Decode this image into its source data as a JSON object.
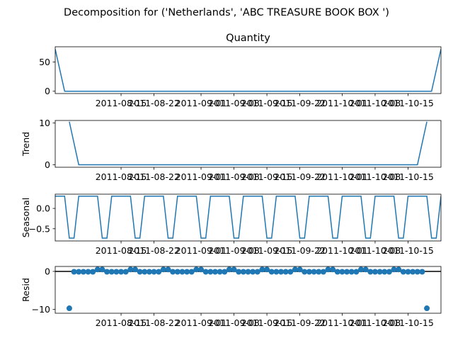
{
  "figure": {
    "suptitle": "Decomposition for ('Netherlands', 'ABC TREASURE BOOK BOX ')"
  },
  "x_ticks": [
    "2011-08-15",
    "2011-08-22",
    "2011-09-01",
    "2011-09-08",
    "2011-09-15",
    "2011-09-22",
    "2011-10-01",
    "2011-10-08",
    "2011-10-15"
  ],
  "colors": {
    "line": "#1f77b4",
    "zero_line": "#000000"
  },
  "chart_data": [
    {
      "type": "line",
      "title": "Quantity",
      "ylabel": "",
      "ylim": [
        -4,
        76
      ],
      "yticks": [
        "0",
        "50"
      ],
      "ytick_values": [
        0,
        50
      ],
      "x": [
        "2011-08-01",
        "2011-08-03",
        "2011-10-20",
        "2011-10-22"
      ],
      "values": [
        72,
        0,
        0,
        72
      ]
    },
    {
      "type": "line",
      "title": "",
      "ylabel": "Trend",
      "ylim": [
        -0.6,
        10.6
      ],
      "yticks": [
        "0",
        "10"
      ],
      "ytick_values": [
        0,
        10
      ],
      "x": [
        "2011-08-04",
        "2011-08-06",
        "2011-10-17",
        "2011-10-19"
      ],
      "values": [
        10.3,
        0,
        0,
        10.3
      ]
    },
    {
      "type": "line",
      "title": "",
      "ylabel": "Seasonal",
      "ylim": [
        -0.8,
        0.35
      ],
      "yticks": [
        "−0.5",
        "0.0"
      ],
      "ytick_values": [
        -0.5,
        0
      ],
      "period_days": 7,
      "start": "2011-08-01",
      "end": "2011-10-22",
      "pattern": [
        0.3,
        0.3,
        0.3,
        -0.73,
        -0.73,
        0.3,
        0.3
      ]
    },
    {
      "type": "scatter",
      "title": "",
      "ylabel": "Resid",
      "ylim": [
        -11,
        1.3
      ],
      "yticks": [
        "−10",
        "0"
      ],
      "ytick_values": [
        -10,
        0
      ],
      "hline": 0,
      "start": "2011-08-04",
      "end": "2011-10-19",
      "outliers": [
        {
          "x": "2011-08-04",
          "y": -9.7
        },
        {
          "x": "2011-10-19",
          "y": -9.7
        }
      ],
      "period_days": 7,
      "pattern": [
        0.5,
        -0.1,
        -0.1,
        -0.1,
        -0.1,
        -0.1,
        0.5
      ]
    }
  ]
}
